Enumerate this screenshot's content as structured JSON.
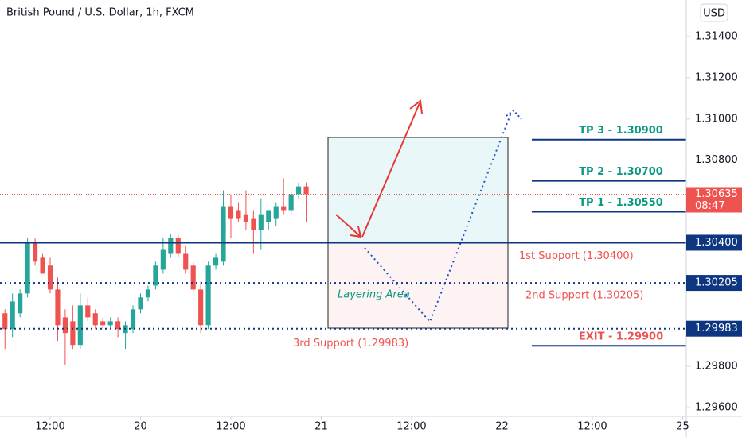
{
  "chart_data": {
    "type": "candlestick",
    "title": "British Pound / U.S. Dollar, 1h, FXCM",
    "currency": "USD",
    "up_color": "#26a69a",
    "down_color": "#ef5350",
    "xlim": [
      5.34,
      96.48
    ],
    "xticks": [
      {
        "value": 12,
        "label": "12:00"
      },
      {
        "value": 24,
        "label": "20"
      },
      {
        "value": 36,
        "label": "12:00"
      },
      {
        "value": 48,
        "label": "21"
      },
      {
        "value": 60,
        "label": "12:00"
      },
      {
        "value": 72,
        "label": "22"
      },
      {
        "value": 84,
        "label": "12:00"
      },
      {
        "value": 96,
        "label": "25"
      }
    ],
    "ylim": [
      1.29558,
      1.31577
    ],
    "yticks": [
      {
        "value": 1.314,
        "label": "1.31400"
      },
      {
        "value": 1.312,
        "label": "1.31200"
      },
      {
        "value": 1.31,
        "label": "1.31000"
      },
      {
        "value": 1.308,
        "label": "1.30800"
      },
      {
        "value": 1.298,
        "label": "1.29800"
      },
      {
        "value": 1.296,
        "label": "1.29600"
      }
    ],
    "x": [
      6,
      7,
      8,
      9,
      10,
      11,
      12,
      13,
      14,
      15,
      16,
      17,
      18,
      19,
      20,
      21,
      22,
      23,
      24,
      25,
      26,
      27,
      28,
      29,
      30,
      31,
      32,
      33,
      34,
      35,
      36,
      37,
      38,
      39,
      40,
      41,
      42,
      43,
      44,
      45,
      46
    ],
    "open": [
      1.30058,
      1.29981,
      1.30058,
      1.30154,
      1.30404,
      1.30327,
      1.30289,
      1.30173,
      1.30038,
      1.30019,
      1.29904,
      1.30096,
      1.30058,
      1.30019,
      1.3,
      1.30019,
      1.29962,
      1.29981,
      1.30077,
      1.30135,
      1.30192,
      1.30269,
      1.30346,
      1.30423,
      1.30346,
      1.30289,
      1.30173,
      1.3,
      1.30289,
      1.30308,
      1.30577,
      1.30558,
      1.30538,
      1.30519,
      1.30461,
      1.305,
      1.30519,
      1.30577,
      1.30558,
      1.30635,
      1.30673
    ],
    "high": [
      1.30077,
      1.30154,
      1.30173,
      1.30423,
      1.30423,
      1.30346,
      1.30327,
      1.30231,
      1.30077,
      1.30096,
      1.30154,
      1.30135,
      1.30077,
      1.30038,
      1.30038,
      1.30038,
      1.30019,
      1.30096,
      1.30154,
      1.30192,
      1.30308,
      1.30423,
      1.30442,
      1.30442,
      1.30385,
      1.30308,
      1.30212,
      1.30308,
      1.30346,
      1.30654,
      1.30635,
      1.30596,
      1.30654,
      1.30558,
      1.30615,
      1.30558,
      1.30596,
      1.30712,
      1.30654,
      1.30692,
      1.30692
    ],
    "low": [
      1.29885,
      1.29942,
      1.30038,
      1.30135,
      1.30289,
      1.3025,
      1.30154,
      1.29923,
      1.29808,
      1.29885,
      1.29885,
      1.30019,
      1.29981,
      1.29981,
      1.29981,
      1.29942,
      1.29885,
      1.29962,
      1.30058,
      1.30115,
      1.30173,
      1.3025,
      1.30327,
      1.30327,
      1.3025,
      1.30154,
      1.29962,
      1.29981,
      1.30269,
      1.30289,
      1.30423,
      1.305,
      1.30461,
      1.30346,
      1.30365,
      1.30461,
      1.30481,
      1.30538,
      1.30538,
      1.30615,
      1.305
    ],
    "close": [
      1.29981,
      1.30115,
      1.30154,
      1.30404,
      1.30308,
      1.3025,
      1.30173,
      1.3,
      1.29962,
      1.29904,
      1.30096,
      1.30038,
      1.3,
      1.3,
      1.30019,
      1.29981,
      1.3,
      1.30077,
      1.30135,
      1.30173,
      1.30289,
      1.30365,
      1.30423,
      1.30346,
      1.30269,
      1.30173,
      1.3,
      1.30289,
      1.30327,
      1.30577,
      1.30519,
      1.30519,
      1.305,
      1.30461,
      1.30538,
      1.30558,
      1.30577,
      1.30558,
      1.30635,
      1.30673,
      1.30635
    ],
    "current_price": {
      "value": 1.30635,
      "label": "1.30635",
      "countdown": "08:47",
      "color": "#ef5350"
    },
    "levels": [
      {
        "value": 1.304,
        "label": "1.30400",
        "text": "1st Support (1.30400)",
        "style": "solid",
        "color": "#0d3580"
      },
      {
        "value": 1.30205,
        "label": "1.30205",
        "text": "2nd Support (1.30205)",
        "style": "dotted",
        "color": "#0d3580"
      },
      {
        "value": 1.29983,
        "label": "1.29983",
        "text": "3rd Support (1.29983)",
        "style": "dotted",
        "color": "#0d3580"
      }
    ],
    "targets": [
      {
        "value": 1.309,
        "label": "TP 3 - 1.30900",
        "color": "#089981"
      },
      {
        "value": 1.307,
        "label": "TP 2 - 1.30700",
        "color": "#089981"
      },
      {
        "value": 1.3055,
        "label": "TP 1 - 1.30550",
        "color": "#089981"
      },
      {
        "value": 1.299,
        "label": "EXIT - 1.29900",
        "color": "#ef5350"
      }
    ],
    "annotations": [
      "Layering Area"
    ]
  }
}
